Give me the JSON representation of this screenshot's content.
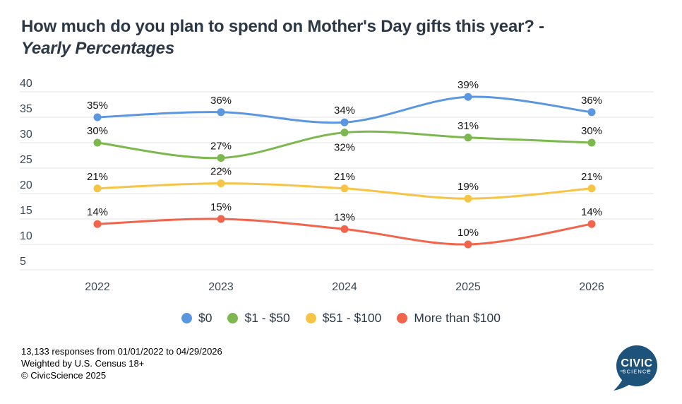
{
  "title": {
    "line1": "How much do you plan to spend on Mother's Day gifts this year? -",
    "line2": "Yearly Percentages"
  },
  "chart_data": {
    "type": "line",
    "title": "How much do you plan to spend on Mother's Day gifts this year? - Yearly Percentages",
    "x": [
      "2022",
      "2023",
      "2024",
      "2025",
      "2026"
    ],
    "series": [
      {
        "name": "$0",
        "color": "#5b97e0",
        "values": [
          35,
          36,
          34,
          39,
          36
        ],
        "labels": [
          "35%",
          "36%",
          "34%",
          "39%",
          "36%"
        ],
        "label_positions": [
          "above",
          "above",
          "above",
          "above",
          "above"
        ]
      },
      {
        "name": "$1 - $50",
        "color": "#7cb84e",
        "values": [
          30,
          27,
          32,
          31,
          30
        ],
        "labels": [
          "30%",
          "27%",
          "32%",
          "31%",
          "30%"
        ],
        "label_positions": [
          "above",
          "above",
          "below",
          "above",
          "above"
        ]
      },
      {
        "name": "$51 - $100",
        "color": "#f7c545",
        "values": [
          21,
          22,
          21,
          19,
          21
        ],
        "labels": [
          "21%",
          "22%",
          "21%",
          "19%",
          "21%"
        ],
        "label_positions": [
          "above",
          "above",
          "above",
          "above",
          "above"
        ]
      },
      {
        "name": "More than $100",
        "color": "#f2654c",
        "values": [
          14,
          15,
          13,
          10,
          14
        ],
        "labels": [
          "14%",
          "15%",
          "13%",
          "10%",
          "14%"
        ],
        "label_positions": [
          "above",
          "above",
          "above",
          "above",
          "above"
        ]
      }
    ],
    "ylim": [
      5,
      40
    ],
    "ytick_step": 5,
    "grid": true,
    "legend_position": "bottom",
    "xlabel": "",
    "ylabel": ""
  },
  "styles": {
    "grid_color": "#e3e3e3",
    "axis_text_color": "#3e4853",
    "data_label_color": "#141414",
    "title_color": "#2d3847"
  },
  "footer": {
    "line1": "13,133 responses from 01/01/2022 to 04/29/2026",
    "line2": "Weighted by U.S. Census 18+",
    "line3": "© CivicScience 2025"
  },
  "logo": {
    "top": "CIVIC",
    "bottom": "SCIENCE",
    "color": "#1d527a"
  }
}
